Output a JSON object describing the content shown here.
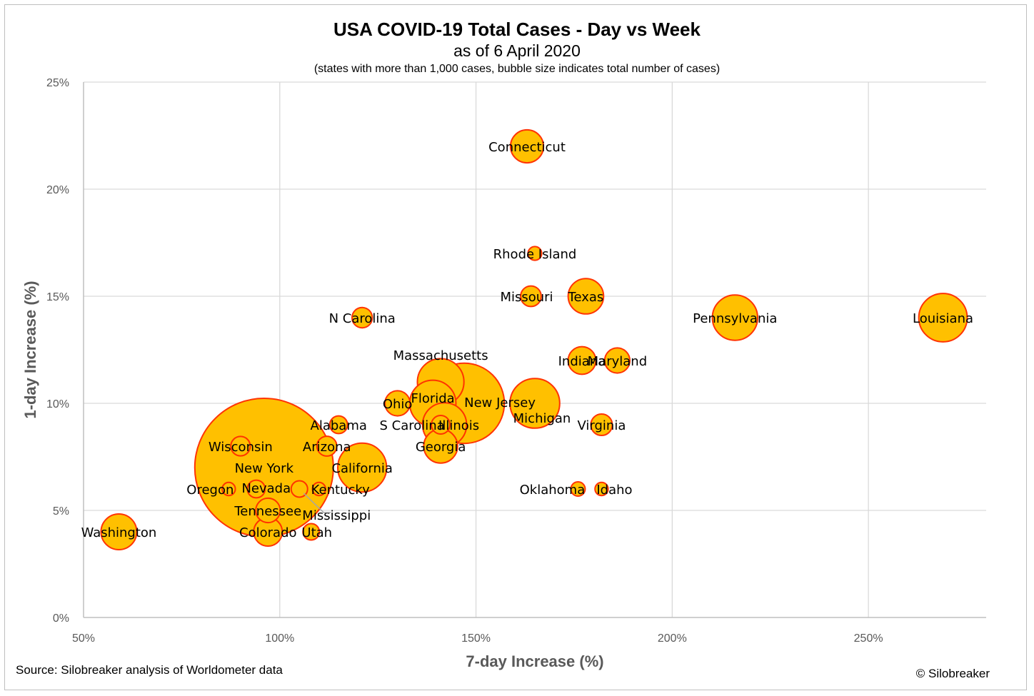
{
  "chart_data": {
    "type": "scatter",
    "title": "USA COVID-19 Total Cases - Day vs Week",
    "subtitle": "as of 6 April 2020",
    "note": "(states with more than 1,000 cases, bubble size indicates total number of cases)",
    "xlabel": "7-day Increase (%)",
    "ylabel": "1-day Increase (%)",
    "xlim": [
      50,
      280
    ],
    "ylim": [
      0,
      25
    ],
    "x_ticks": [
      "50%",
      "100%",
      "150%",
      "200%",
      "250%"
    ],
    "y_ticks": [
      "0%",
      "5%",
      "10%",
      "15%",
      "20%",
      "25%"
    ],
    "grid": true,
    "bubble_fill": "#FFC000",
    "bubble_stroke": "#FF3300",
    "points": [
      {
        "name": "New York",
        "x": 96,
        "y": 7,
        "size": 122000
      },
      {
        "name": "New Jersey",
        "x": 147,
        "y": 10,
        "size": 41000
      },
      {
        "name": "Michigan",
        "x": 165,
        "y": 10,
        "size": 15700
      },
      {
        "name": "California",
        "x": 121,
        "y": 7,
        "size": 15200
      },
      {
        "name": "Louisiana",
        "x": 269,
        "y": 14,
        "size": 14900
      },
      {
        "name": "Massachusetts",
        "x": 141,
        "y": 11,
        "size": 13800
      },
      {
        "name": "Florida",
        "x": 139,
        "y": 10,
        "size": 13600
      },
      {
        "name": "Pennsylvania",
        "x": 216,
        "y": 14,
        "size": 13000
      },
      {
        "name": "Illinois",
        "x": 142,
        "y": 9,
        "size": 12300
      },
      {
        "name": "Washington",
        "x": 59,
        "y": 4,
        "size": 8100
      },
      {
        "name": "Texas",
        "x": 178,
        "y": 15,
        "size": 8000
      },
      {
        "name": "Georgia",
        "x": 141,
        "y": 8,
        "size": 7300
      },
      {
        "name": "Connecticut",
        "x": 163,
        "y": 22,
        "size": 6900
      },
      {
        "name": "Colorado",
        "x": 97,
        "y": 4,
        "size": 5200
      },
      {
        "name": "Tennessee",
        "x": 97,
        "y": 5,
        "size": 3800
      },
      {
        "name": "Indiana",
        "x": 177,
        "y": 12,
        "size": 4900
      },
      {
        "name": "Maryland",
        "x": 186,
        "y": 12,
        "size": 4000
      },
      {
        "name": "Ohio",
        "x": 130,
        "y": 10,
        "size": 4000
      },
      {
        "name": "Virginia",
        "x": 182,
        "y": 9,
        "size": 2900
      },
      {
        "name": "N Carolina",
        "x": 121,
        "y": 14,
        "size": 2600
      },
      {
        "name": "Missouri",
        "x": 164,
        "y": 15,
        "size": 2700
      },
      {
        "name": "Arizona",
        "x": 112,
        "y": 8,
        "size": 2500
      },
      {
        "name": "Wisconsin",
        "x": 90,
        "y": 8,
        "size": 2400
      },
      {
        "name": "S Carolina",
        "x": 141,
        "y": 9,
        "size": 2200
      },
      {
        "name": "Alabama",
        "x": 115,
        "y": 9,
        "size": 2000
      },
      {
        "name": "Nevada",
        "x": 94,
        "y": 6,
        "size": 2000
      },
      {
        "name": "Mississippi",
        "x": 105,
        "y": 6,
        "size": 1700
      },
      {
        "name": "Utah",
        "x": 108,
        "y": 4,
        "size": 1700
      },
      {
        "name": "Kentucky",
        "x": 110,
        "y": 6,
        "size": 1100
      },
      {
        "name": "Oklahoma",
        "x": 176,
        "y": 6,
        "size": 1300
      },
      {
        "name": "Rhode Island",
        "x": 165,
        "y": 17,
        "size": 1200
      },
      {
        "name": "Idaho",
        "x": 182,
        "y": 6,
        "size": 1100
      },
      {
        "name": "Oregon",
        "x": 87,
        "y": 6,
        "size": 1100
      }
    ]
  },
  "title_text": "USA COVID-19 Total Cases - Day vs Week",
  "subtitle_text": "as of 6 April 2020",
  "note_text": "(states with more than 1,000 cases, bubble size indicates total number of cases)",
  "source": "Source: Silobreaker analysis of Worldometer data",
  "copyright": "© Silobreaker"
}
